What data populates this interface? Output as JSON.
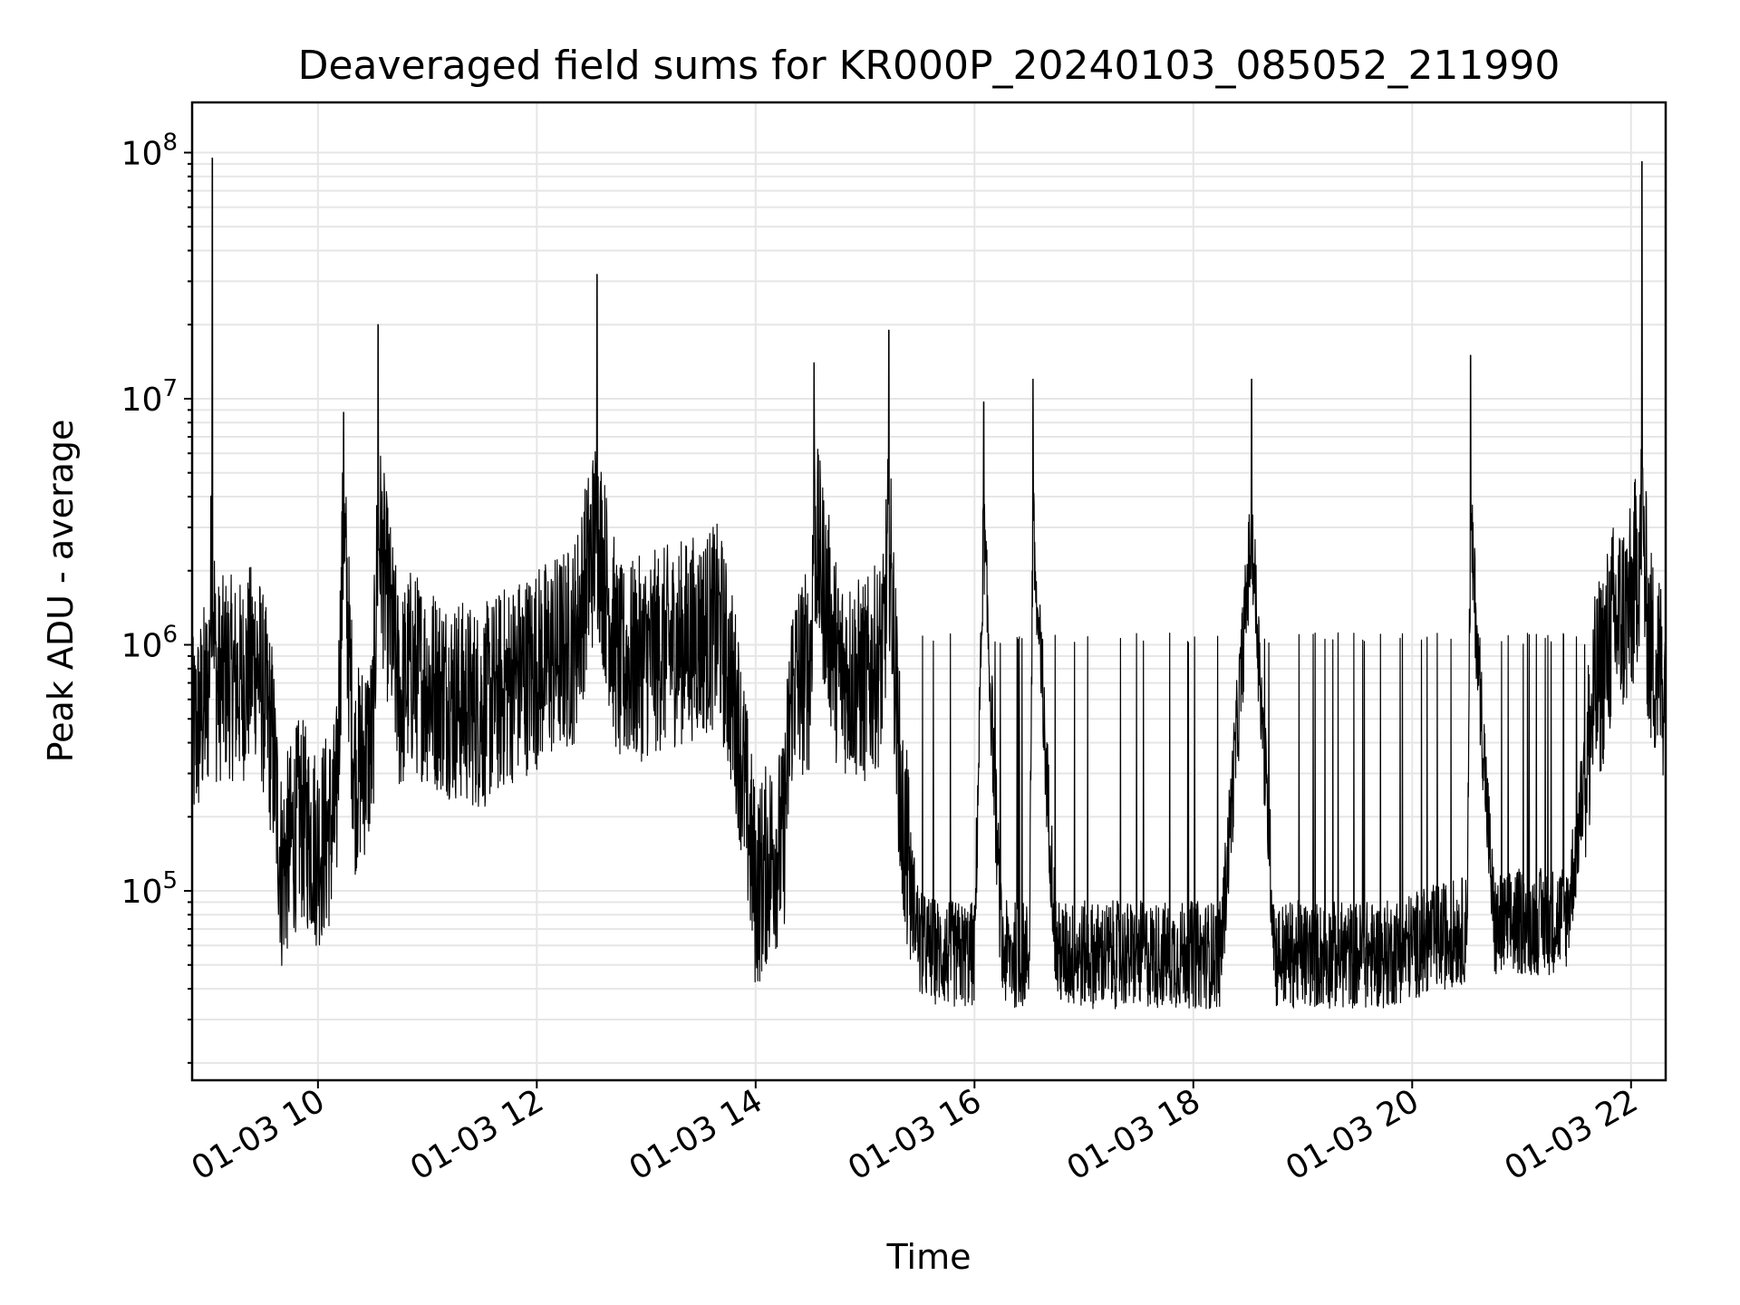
{
  "chart_data": {
    "type": "line",
    "title": "Deaveraged field sums for KR000P_20240103_085052_211990",
    "xlabel": "Time",
    "ylabel": "Peak ADU - average",
    "yscale": "log",
    "grid": "on",
    "legend": "none",
    "line_color": "#000000",
    "xlim": [
      "2024-01-03 08:51",
      "2024-01-03 22:19"
    ],
    "ylim": [
      17000,
      160000000
    ],
    "x_ticks": [
      {
        "label": "01-03 10",
        "value": "2024-01-03 10:00"
      },
      {
        "label": "01-03 12",
        "value": "2024-01-03 12:00"
      },
      {
        "label": "01-03 14",
        "value": "2024-01-03 14:00"
      },
      {
        "label": "01-03 16",
        "value": "2024-01-03 16:00"
      },
      {
        "label": "01-03 18",
        "value": "2024-01-03 18:00"
      },
      {
        "label": "01-03 20",
        "value": "2024-01-03 20:00"
      },
      {
        "label": "01-03 22",
        "value": "2024-01-03 22:00"
      }
    ],
    "y_ticks": [
      {
        "base": "10",
        "exp": "5",
        "value": 100000
      },
      {
        "base": "10",
        "exp": "6",
        "value": 1000000
      },
      {
        "base": "10",
        "exp": "7",
        "value": 10000000
      },
      {
        "base": "10",
        "exp": "8",
        "value": 100000000
      }
    ],
    "series": [
      {
        "x": [
          "2024-01-03 08:51",
          "2024-01-03 09:00",
          "2024-01-03 09:02",
          "2024-01-03 09:04",
          "2024-01-03 09:10",
          "2024-01-03 09:18",
          "2024-01-03 09:26",
          "2024-01-03 09:35",
          "2024-01-03 09:40",
          "2024-01-03 09:50",
          "2024-01-03 10:00",
          "2024-01-03 10:10",
          "2024-01-03 10:14",
          "2024-01-03 10:20",
          "2024-01-03 10:30",
          "2024-01-03 10:33",
          "2024-01-03 10:45",
          "2024-01-03 10:50",
          "2024-01-03 11:00",
          "2024-01-03 11:15",
          "2024-01-03 11:30",
          "2024-01-03 11:45",
          "2024-01-03 11:58",
          "2024-01-03 12:10",
          "2024-01-03 12:20",
          "2024-01-03 12:33",
          "2024-01-03 12:45",
          "2024-01-03 13:00",
          "2024-01-03 13:15",
          "2024-01-03 13:30",
          "2024-01-03 13:40",
          "2024-01-03 13:50",
          "2024-01-03 14:00",
          "2024-01-03 14:10",
          "2024-01-03 14:15",
          "2024-01-03 14:20",
          "2024-01-03 14:30",
          "2024-01-03 14:32",
          "2024-01-03 14:45",
          "2024-01-03 15:00",
          "2024-01-03 15:10",
          "2024-01-03 15:13",
          "2024-01-03 15:20",
          "2024-01-03 15:30",
          "2024-01-03 15:45",
          "2024-01-03 16:00",
          "2024-01-03 16:05",
          "2024-01-03 16:15",
          "2024-01-03 16:30",
          "2024-01-03 16:32",
          "2024-01-03 16:45",
          "2024-01-03 17:00",
          "2024-01-03 17:15",
          "2024-01-03 17:30",
          "2024-01-03 17:45",
          "2024-01-03 18:00",
          "2024-01-03 18:15",
          "2024-01-03 18:32",
          "2024-01-03 18:45",
          "2024-01-03 19:00",
          "2024-01-03 19:15",
          "2024-01-03 19:30",
          "2024-01-03 19:45",
          "2024-01-03 20:00",
          "2024-01-03 20:15",
          "2024-01-03 20:30",
          "2024-01-03 20:32",
          "2024-01-03 20:45",
          "2024-01-03 21:00",
          "2024-01-03 21:15",
          "2024-01-03 21:25",
          "2024-01-03 21:32",
          "2024-01-03 21:40",
          "2024-01-03 21:50",
          "2024-01-03 22:00",
          "2024-01-03 22:06",
          "2024-01-03 22:10",
          "2024-01-03 22:15",
          "2024-01-03 22:19"
        ],
        "values": [
          400000,
          650000,
          95000000,
          700000,
          750000,
          700000,
          900000,
          400000,
          120000,
          200000,
          150000,
          200000,
          8800000,
          300000,
          400000,
          20000000,
          600000,
          800000,
          700000,
          600000,
          550000,
          700000,
          800000,
          900000,
          1000000,
          32000000,
          800000,
          900000,
          1000000,
          1100000,
          1200000,
          500000,
          100000,
          150000,
          150000,
          700000,
          800000,
          14000000,
          800000,
          700000,
          900000,
          19000000,
          200000,
          60000,
          55000,
          55000,
          9700000,
          55000,
          55000,
          12000000,
          55000,
          55000,
          55000,
          55000,
          55000,
          55000,
          55000,
          12000000,
          55000,
          55000,
          55000,
          55000,
          55000,
          60000,
          65000,
          70000,
          15000000,
          70000,
          75000,
          75000,
          80000,
          200000,
          600000,
          1200000,
          1400000,
          92000000,
          1000000,
          800000,
          700000
        ]
      }
    ]
  }
}
